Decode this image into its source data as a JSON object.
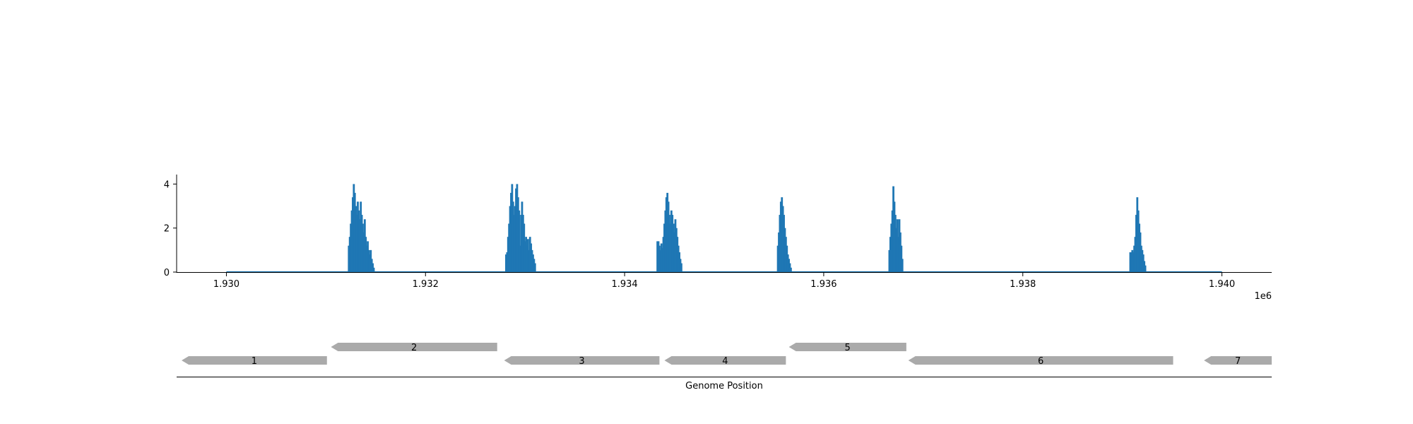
{
  "chart_data": [
    {
      "type": "bar",
      "title": "",
      "xlabel": "",
      "ylabel": "",
      "x_offset_label": "1e6",
      "xlim": [
        1929500,
        1940500
      ],
      "ylim": [
        0,
        4.4
      ],
      "xticks": [
        1930000,
        1932000,
        1934000,
        1936000,
        1938000,
        1940000
      ],
      "xtick_labels": [
        "1.930",
        "1.932",
        "1.934",
        "1.936",
        "1.938",
        "1.940"
      ],
      "yticks": [
        0,
        2,
        4
      ],
      "ytick_labels": [
        "0",
        "2",
        "4"
      ],
      "baseline": [
        1930000,
        1940000
      ],
      "series_color": "#1f77b4",
      "peaks": [
        {
          "x": [
            1931230,
            1931240,
            1931250,
            1931260,
            1931270,
            1931280,
            1931290,
            1931300,
            1931310,
            1931320,
            1931330,
            1931340,
            1931350,
            1931360,
            1931370,
            1931380,
            1931390,
            1931400,
            1931410,
            1931420,
            1931430,
            1931440,
            1931450,
            1931460,
            1931470,
            1931480
          ],
          "y": [
            1.2,
            1.6,
            2.2,
            2.8,
            3.4,
            4.0,
            3.6,
            3.0,
            2.6,
            3.2,
            2.8,
            2.4,
            3.2,
            2.6,
            2.2,
            1.8,
            2.4,
            1.6,
            1.2,
            1.4,
            1.0,
            0.8,
            1.0,
            0.6,
            0.4,
            0.2
          ]
        },
        {
          "x": [
            1932810,
            1932820,
            1932830,
            1932840,
            1932850,
            1932860,
            1932870,
            1932880,
            1932890,
            1932900,
            1932910,
            1932920,
            1932930,
            1932940,
            1932950,
            1932960,
            1932970,
            1932980,
            1932990,
            1933000,
            1933010,
            1933020,
            1933030,
            1933040,
            1933050,
            1933060,
            1933070,
            1933080,
            1933090,
            1933100
          ],
          "y": [
            0.8,
            0.9,
            1.6,
            2.2,
            3.0,
            3.6,
            4.0,
            3.2,
            2.6,
            3.0,
            3.8,
            4.0,
            3.4,
            2.8,
            1.2,
            2.6,
            3.2,
            2.6,
            2.2,
            1.4,
            1.6,
            1.2,
            1.5,
            1.0,
            1.6,
            1.3,
            1.0,
            0.8,
            0.6,
            0.4
          ]
        },
        {
          "x": [
            1934330,
            1934340,
            1934350,
            1934360,
            1934370,
            1934380,
            1934390,
            1934400,
            1934410,
            1934420,
            1934430,
            1934440,
            1934450,
            1934460,
            1934470,
            1934480,
            1934490,
            1934500,
            1934510,
            1934520,
            1934530,
            1934540,
            1934550,
            1934560,
            1934570
          ],
          "y": [
            1.4,
            1.4,
            1.2,
            1.0,
            1.3,
            1.1,
            1.6,
            2.2,
            2.8,
            3.4,
            3.6,
            3.2,
            2.6,
            2.2,
            2.8,
            2.6,
            2.2,
            1.8,
            2.4,
            2.0,
            1.6,
            1.2,
            0.9,
            0.6,
            0.4
          ]
        },
        {
          "x": [
            1935540,
            1935550,
            1935560,
            1935570,
            1935580,
            1935590,
            1935600,
            1935610,
            1935620,
            1935630,
            1935640,
            1935650,
            1935660,
            1935670
          ],
          "y": [
            1.2,
            1.8,
            2.6,
            3.2,
            3.4,
            3.0,
            2.6,
            2.0,
            1.6,
            1.2,
            0.8,
            0.6,
            0.4,
            0.2
          ]
        },
        {
          "x": [
            1936660,
            1936670,
            1936680,
            1936690,
            1936700,
            1936710,
            1936720,
            1936730,
            1936740,
            1936750,
            1936760,
            1936770,
            1936780,
            1936790
          ],
          "y": [
            1.0,
            1.6,
            2.2,
            2.8,
            3.9,
            3.2,
            2.6,
            2.0,
            2.4,
            1.6,
            2.4,
            1.8,
            1.2,
            0.6
          ]
        },
        {
          "x": [
            1939080,
            1939090,
            1939100,
            1939110,
            1939120,
            1939130,
            1939140,
            1939150,
            1939160,
            1939170,
            1939180,
            1939190,
            1939200,
            1939210,
            1939220,
            1939230
          ],
          "y": [
            0.9,
            0.9,
            1.0,
            0.9,
            1.2,
            1.6,
            2.6,
            3.4,
            2.8,
            2.2,
            1.8,
            1.2,
            1.0,
            0.8,
            0.5,
            0.3
          ]
        }
      ]
    },
    {
      "type": "gene-track",
      "xlabel": "Genome Position",
      "xlim": [
        1929500,
        1940500
      ],
      "feature_color": "#aaaaaa",
      "features": [
        {
          "label": "1",
          "start": 1929550,
          "end": 1931010,
          "strand": "-",
          "row": "lower"
        },
        {
          "label": "2",
          "start": 1931050,
          "end": 1932720,
          "strand": "-",
          "row": "upper"
        },
        {
          "label": "3",
          "start": 1932790,
          "end": 1934350,
          "strand": "-",
          "row": "lower"
        },
        {
          "label": "4",
          "start": 1934400,
          "end": 1935620,
          "strand": "-",
          "row": "lower"
        },
        {
          "label": "5",
          "start": 1935650,
          "end": 1936830,
          "strand": "-",
          "row": "upper"
        },
        {
          "label": "6",
          "start": 1936850,
          "end": 1939510,
          "strand": "-",
          "row": "lower"
        },
        {
          "label": "7",
          "start": 1939820,
          "end": 1940500,
          "strand": "-",
          "row": "lower"
        }
      ]
    }
  ]
}
